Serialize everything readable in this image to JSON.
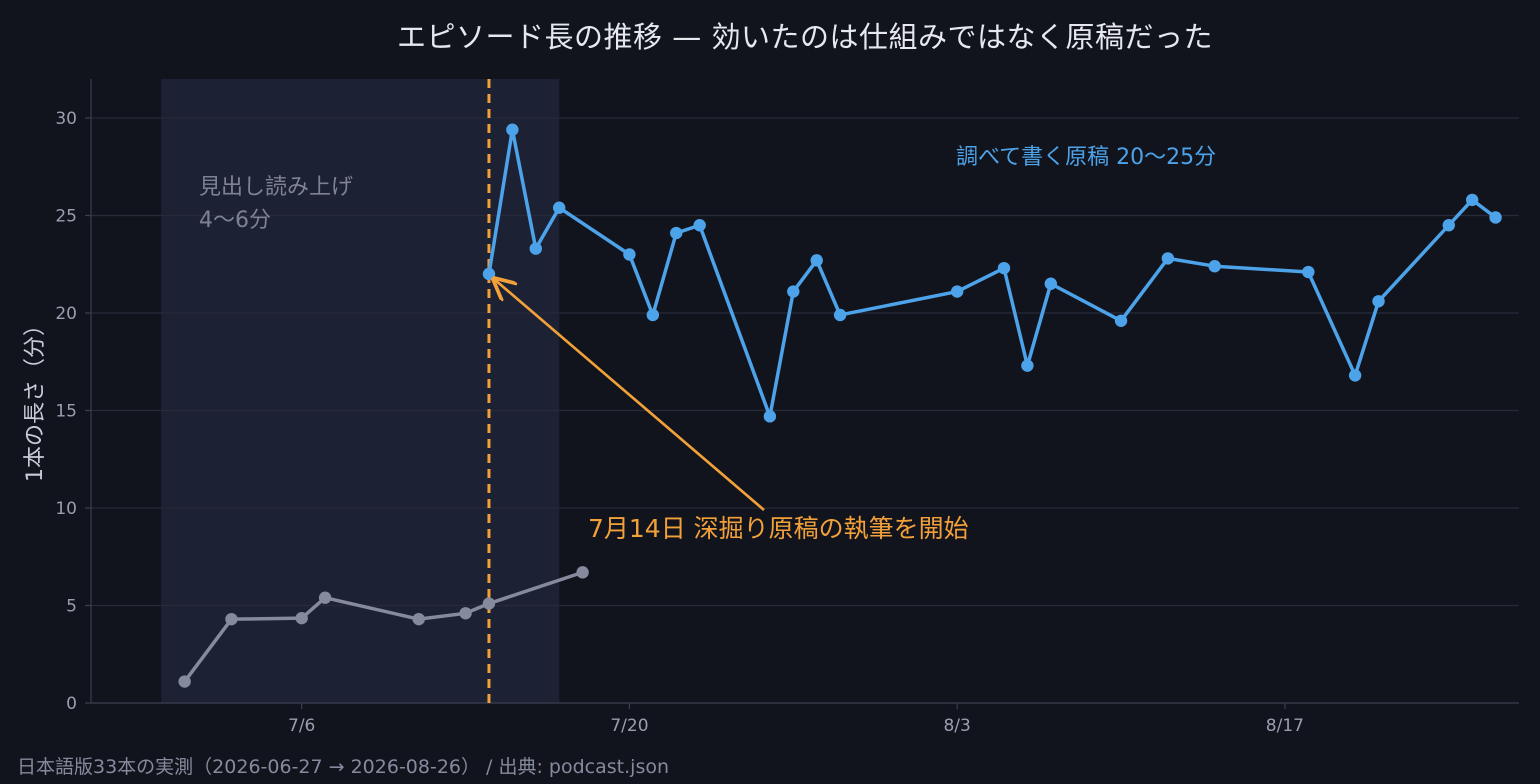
{
  "chart_data": {
    "type": "line",
    "title": "エピソード長の推移 — 効いたのは仕組みではなく原稿だった",
    "ylabel": "1本の長さ（分）",
    "xlabel": "",
    "ylim": [
      0,
      32
    ],
    "xlim": [
      "2026-06-27",
      "2026-08-27"
    ],
    "yticks": [
      0,
      5,
      10,
      15,
      20,
      25,
      30
    ],
    "xticks": [
      {
        "date": "2026-07-06",
        "label": "7/6"
      },
      {
        "date": "2026-07-20",
        "label": "7/20"
      },
      {
        "date": "2026-08-03",
        "label": "8/3"
      },
      {
        "date": "2026-08-17",
        "label": "8/17"
      }
    ],
    "grid": "horizontal",
    "shaded_region": {
      "start": "2026-06-30",
      "end": "2026-07-17",
      "color": "#1c2133"
    },
    "vline": {
      "date": "2026-07-14",
      "color": "#f2a13a",
      "style": "dashed"
    },
    "series": [
      {
        "color": "#858a9c",
        "points": [
          [
            "2026-07-01",
            1.1
          ],
          [
            "2026-07-03",
            4.3
          ],
          [
            "2026-07-06",
            4.35
          ],
          [
            "2026-07-07",
            5.4
          ],
          [
            "2026-07-11",
            4.3
          ],
          [
            "2026-07-13",
            4.6
          ],
          [
            "2026-07-14",
            5.1
          ],
          [
            "2026-07-18",
            6.7
          ]
        ]
      },
      {
        "color": "#4da3ea",
        "points": [
          [
            "2026-07-14",
            22.0
          ],
          [
            "2026-07-15",
            29.4
          ],
          [
            "2026-07-16",
            23.3
          ],
          [
            "2026-07-17",
            25.4
          ],
          [
            "2026-07-20",
            23.0
          ],
          [
            "2026-07-21",
            19.9
          ],
          [
            "2026-07-22",
            24.1
          ],
          [
            "2026-07-23",
            24.5
          ],
          [
            "2026-07-26",
            14.7
          ],
          [
            "2026-07-27",
            21.1
          ],
          [
            "2026-07-28",
            22.7
          ],
          [
            "2026-07-29",
            19.9
          ],
          [
            "2026-08-03",
            21.1
          ],
          [
            "2026-08-05",
            22.3
          ],
          [
            "2026-08-06",
            17.3
          ],
          [
            "2026-08-07",
            21.5
          ],
          [
            "2026-08-10",
            19.6
          ],
          [
            "2026-08-12",
            22.8
          ],
          [
            "2026-08-14",
            22.4
          ],
          [
            "2026-08-18",
            22.1
          ],
          [
            "2026-08-20",
            16.8
          ],
          [
            "2026-08-21",
            20.6
          ],
          [
            "2026-08-24",
            24.5
          ],
          [
            "2026-08-25",
            25.8
          ],
          [
            "2026-08-26",
            24.9
          ]
        ]
      }
    ],
    "annotations": {
      "gray": [
        "見出し読み上げ",
        "4〜6分"
      ],
      "blue": "調べて書く原稿  20〜25分",
      "orange": "7月14日  深掘り原稿の執筆を開始",
      "orange_arrow_target": [
        "2026-07-14",
        22.0
      ]
    }
  },
  "footer": "日本語版33本の実測（2026-06-27 → 2026-08-26） / 出典: podcast.json"
}
